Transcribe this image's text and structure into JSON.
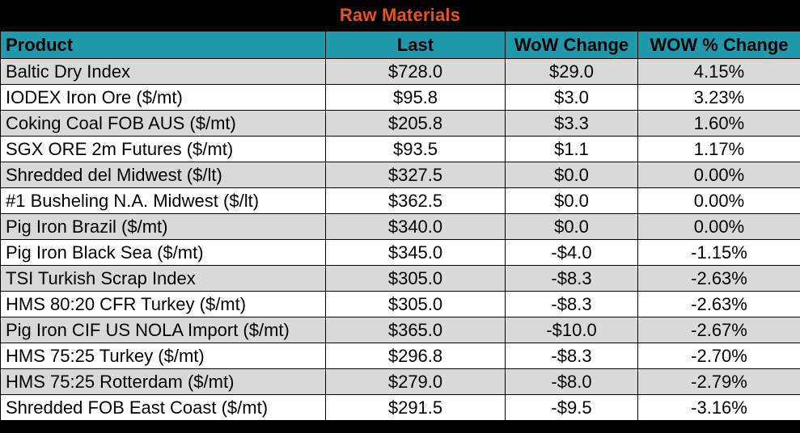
{
  "title": "Raw Materials",
  "columns": [
    "Product",
    "Last",
    "WoW Change",
    "WOW % Change"
  ],
  "rows": [
    {
      "product": "Baltic Dry Index",
      "last": "$728.0",
      "wow": "$29.0",
      "pct": "4.15%"
    },
    {
      "product": "IODEX  Iron Ore ($/mt)",
      "last": "$95.8",
      "wow": "$3.0",
      "pct": "3.23%"
    },
    {
      "product": "Coking Coal FOB AUS ($/mt)",
      "last": "$205.8",
      "wow": "$3.3",
      "pct": "1.60%"
    },
    {
      "product": "SGX ORE 2m Futures ($/mt)",
      "last": "$93.5",
      "wow": "$1.1",
      "pct": "1.17%"
    },
    {
      "product": "Shredded del  Midwest ($/lt)",
      "last": "$327.5",
      "wow": "$0.0",
      "pct": "0.00%"
    },
    {
      "product": "#1 Busheling N.A. Midwest ($/lt)",
      "last": "$362.5",
      "wow": "$0.0",
      "pct": "0.00%"
    },
    {
      "product": "Pig Iron Brazil ($/mt)",
      "last": "$340.0",
      "wow": "$0.0",
      "pct": "0.00%"
    },
    {
      "product": "Pig Iron Black Sea ($/mt)",
      "last": "$345.0",
      "wow": "-$4.0",
      "pct": "-1.15%"
    },
    {
      "product": "TSI Turkish Scrap Index",
      "last": "$305.0",
      "wow": "-$8.3",
      "pct": "-2.63%"
    },
    {
      "product": "HMS 80:20 CFR Turkey ($/mt)",
      "last": "$305.0",
      "wow": "-$8.3",
      "pct": "-2.63%"
    },
    {
      "product": "Pig Iron CIF US NOLA Import ($/mt)",
      "last": "$365.0",
      "wow": "-$10.0",
      "pct": "-2.67%"
    },
    {
      "product": "HMS 75:25 Turkey ($/mt)",
      "last": "$296.8",
      "wow": "-$8.3",
      "pct": "-2.70%"
    },
    {
      "product": "HMS 75:25 Rotterdam ($/mt)",
      "last": "$279.0",
      "wow": "-$8.0",
      "pct": "-2.79%"
    },
    {
      "product": "Shredded FOB East Coast ($/mt)",
      "last": "$291.5",
      "wow": "-$9.5",
      "pct": "-3.16%"
    }
  ],
  "colors": {
    "title_text": "#e8541c",
    "title_background": "#000000",
    "header_background": "#1f9aad",
    "row_shaded": "#d9d9d9",
    "row_plain": "#ffffff",
    "grid_lines": "#000000"
  }
}
